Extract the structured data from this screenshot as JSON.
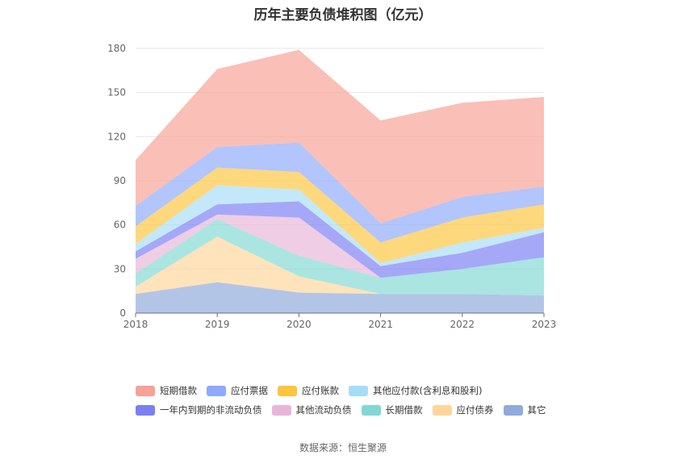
{
  "chart_data": {
    "type": "area",
    "title": "历年主要负债堆积图（亿元）",
    "x": [
      "2018",
      "2019",
      "2020",
      "2021",
      "2022",
      "2023"
    ],
    "ylim": [
      0,
      180
    ],
    "yticks": [
      0,
      30,
      60,
      90,
      120,
      150,
      180
    ],
    "grid": true,
    "legend_position": "bottom",
    "stacked": true,
    "series": [
      {
        "name": "其它",
        "color": "#8faadc",
        "values": [
          13,
          21,
          14,
          13,
          13,
          12
        ]
      },
      {
        "name": "应付债券",
        "color": "#ffd599",
        "values": [
          5,
          31,
          11,
          0,
          0,
          0
        ]
      },
      {
        "name": "长期借款",
        "color": "#81d8d4",
        "values": [
          9,
          12,
          14,
          11,
          17,
          26
        ]
      },
      {
        "name": "其他流动负债",
        "color": "#e8b5d8",
        "values": [
          10,
          3,
          26,
          0,
          0,
          0
        ]
      },
      {
        "name": "一年内到期的非流动负债",
        "color": "#7b7ff3",
        "values": [
          5,
          7,
          11,
          8,
          11,
          17
        ]
      },
      {
        "name": "其他应付款(含利息和股利)",
        "color": "#a6ddf6",
        "values": [
          5,
          13,
          8,
          2,
          7,
          3
        ]
      },
      {
        "name": "应付账款",
        "color": "#fec53f",
        "values": [
          12,
          12,
          12,
          14,
          17,
          16
        ]
      },
      {
        "name": "应付票据",
        "color": "#8daafb",
        "values": [
          14,
          14,
          20,
          13,
          14,
          12
        ]
      },
      {
        "name": "短期借款",
        "color": "#f8a195",
        "values": [
          31,
          53,
          63,
          70,
          64,
          61
        ]
      }
    ],
    "legend_order": [
      "短期借款",
      "应付票据",
      "应付账款",
      "其他应付款(含利息和股利)",
      "一年内到期的非流动负债",
      "其他流动负债",
      "长期借款",
      "应付债券",
      "其它"
    ]
  },
  "source": "数据来源：恒生聚源"
}
